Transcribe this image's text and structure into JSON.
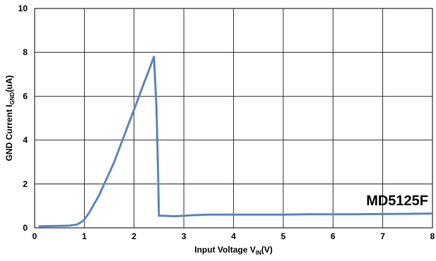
{
  "chart_data": {
    "type": "line",
    "xlabel": {
      "prefix": "Input Voltage V",
      "sub": "IN",
      "suffix": "(V)"
    },
    "ylabel": {
      "prefix": "GND  Current I",
      "sub": "GND",
      "suffix": "(uA)"
    },
    "xlim": [
      0,
      8
    ],
    "ylim": [
      0,
      10
    ],
    "x_ticks": [
      0,
      1,
      2,
      3,
      4,
      5,
      6,
      7,
      8
    ],
    "y_ticks": [
      0,
      2,
      4,
      6,
      8,
      10
    ],
    "grid": true,
    "annotation": "MD5125F",
    "colors": {
      "series": "#5b87bf",
      "grid": "#000000"
    },
    "series": [
      {
        "x": [
          0.1,
          0.3,
          0.5,
          0.7,
          0.85,
          0.95,
          1.0,
          1.1,
          1.2,
          1.3,
          1.4,
          1.5,
          1.6,
          1.7,
          1.8,
          1.9,
          2.0,
          2.1,
          2.2,
          2.3,
          2.4,
          2.45,
          2.48,
          2.5,
          2.6,
          2.8,
          3.0,
          3.2,
          3.5,
          4.0,
          4.5,
          5.0,
          5.5,
          6.0,
          6.5,
          7.0,
          7.5,
          8.0
        ],
        "y": [
          0.07,
          0.08,
          0.09,
          0.1,
          0.15,
          0.28,
          0.38,
          0.7,
          1.1,
          1.5,
          2.0,
          2.5,
          3.0,
          3.6,
          4.2,
          4.8,
          5.4,
          6.0,
          6.6,
          7.2,
          7.8,
          5.5,
          2.8,
          0.55,
          0.55,
          0.53,
          0.55,
          0.58,
          0.6,
          0.6,
          0.6,
          0.6,
          0.62,
          0.62,
          0.62,
          0.63,
          0.64,
          0.65
        ]
      }
    ]
  }
}
